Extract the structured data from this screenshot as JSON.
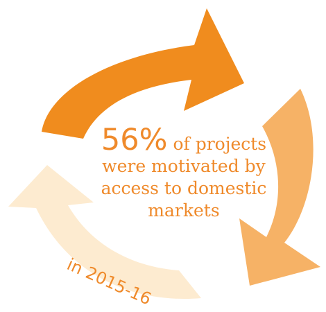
{
  "stat": {
    "percent": "56%",
    "line1": "of projects",
    "line2": "were motivated by",
    "line3": "access to domestic",
    "line4": "markets"
  },
  "period": "in 2015-16",
  "colors": {
    "arrow_top": "#f08c1e",
    "arrow_right": "#f6b266",
    "arrow_left": "#fdebd0",
    "text": "#ef8a2b"
  },
  "icons": [
    "cycle-arrow-top-icon",
    "cycle-arrow-right-icon",
    "cycle-arrow-left-icon"
  ]
}
